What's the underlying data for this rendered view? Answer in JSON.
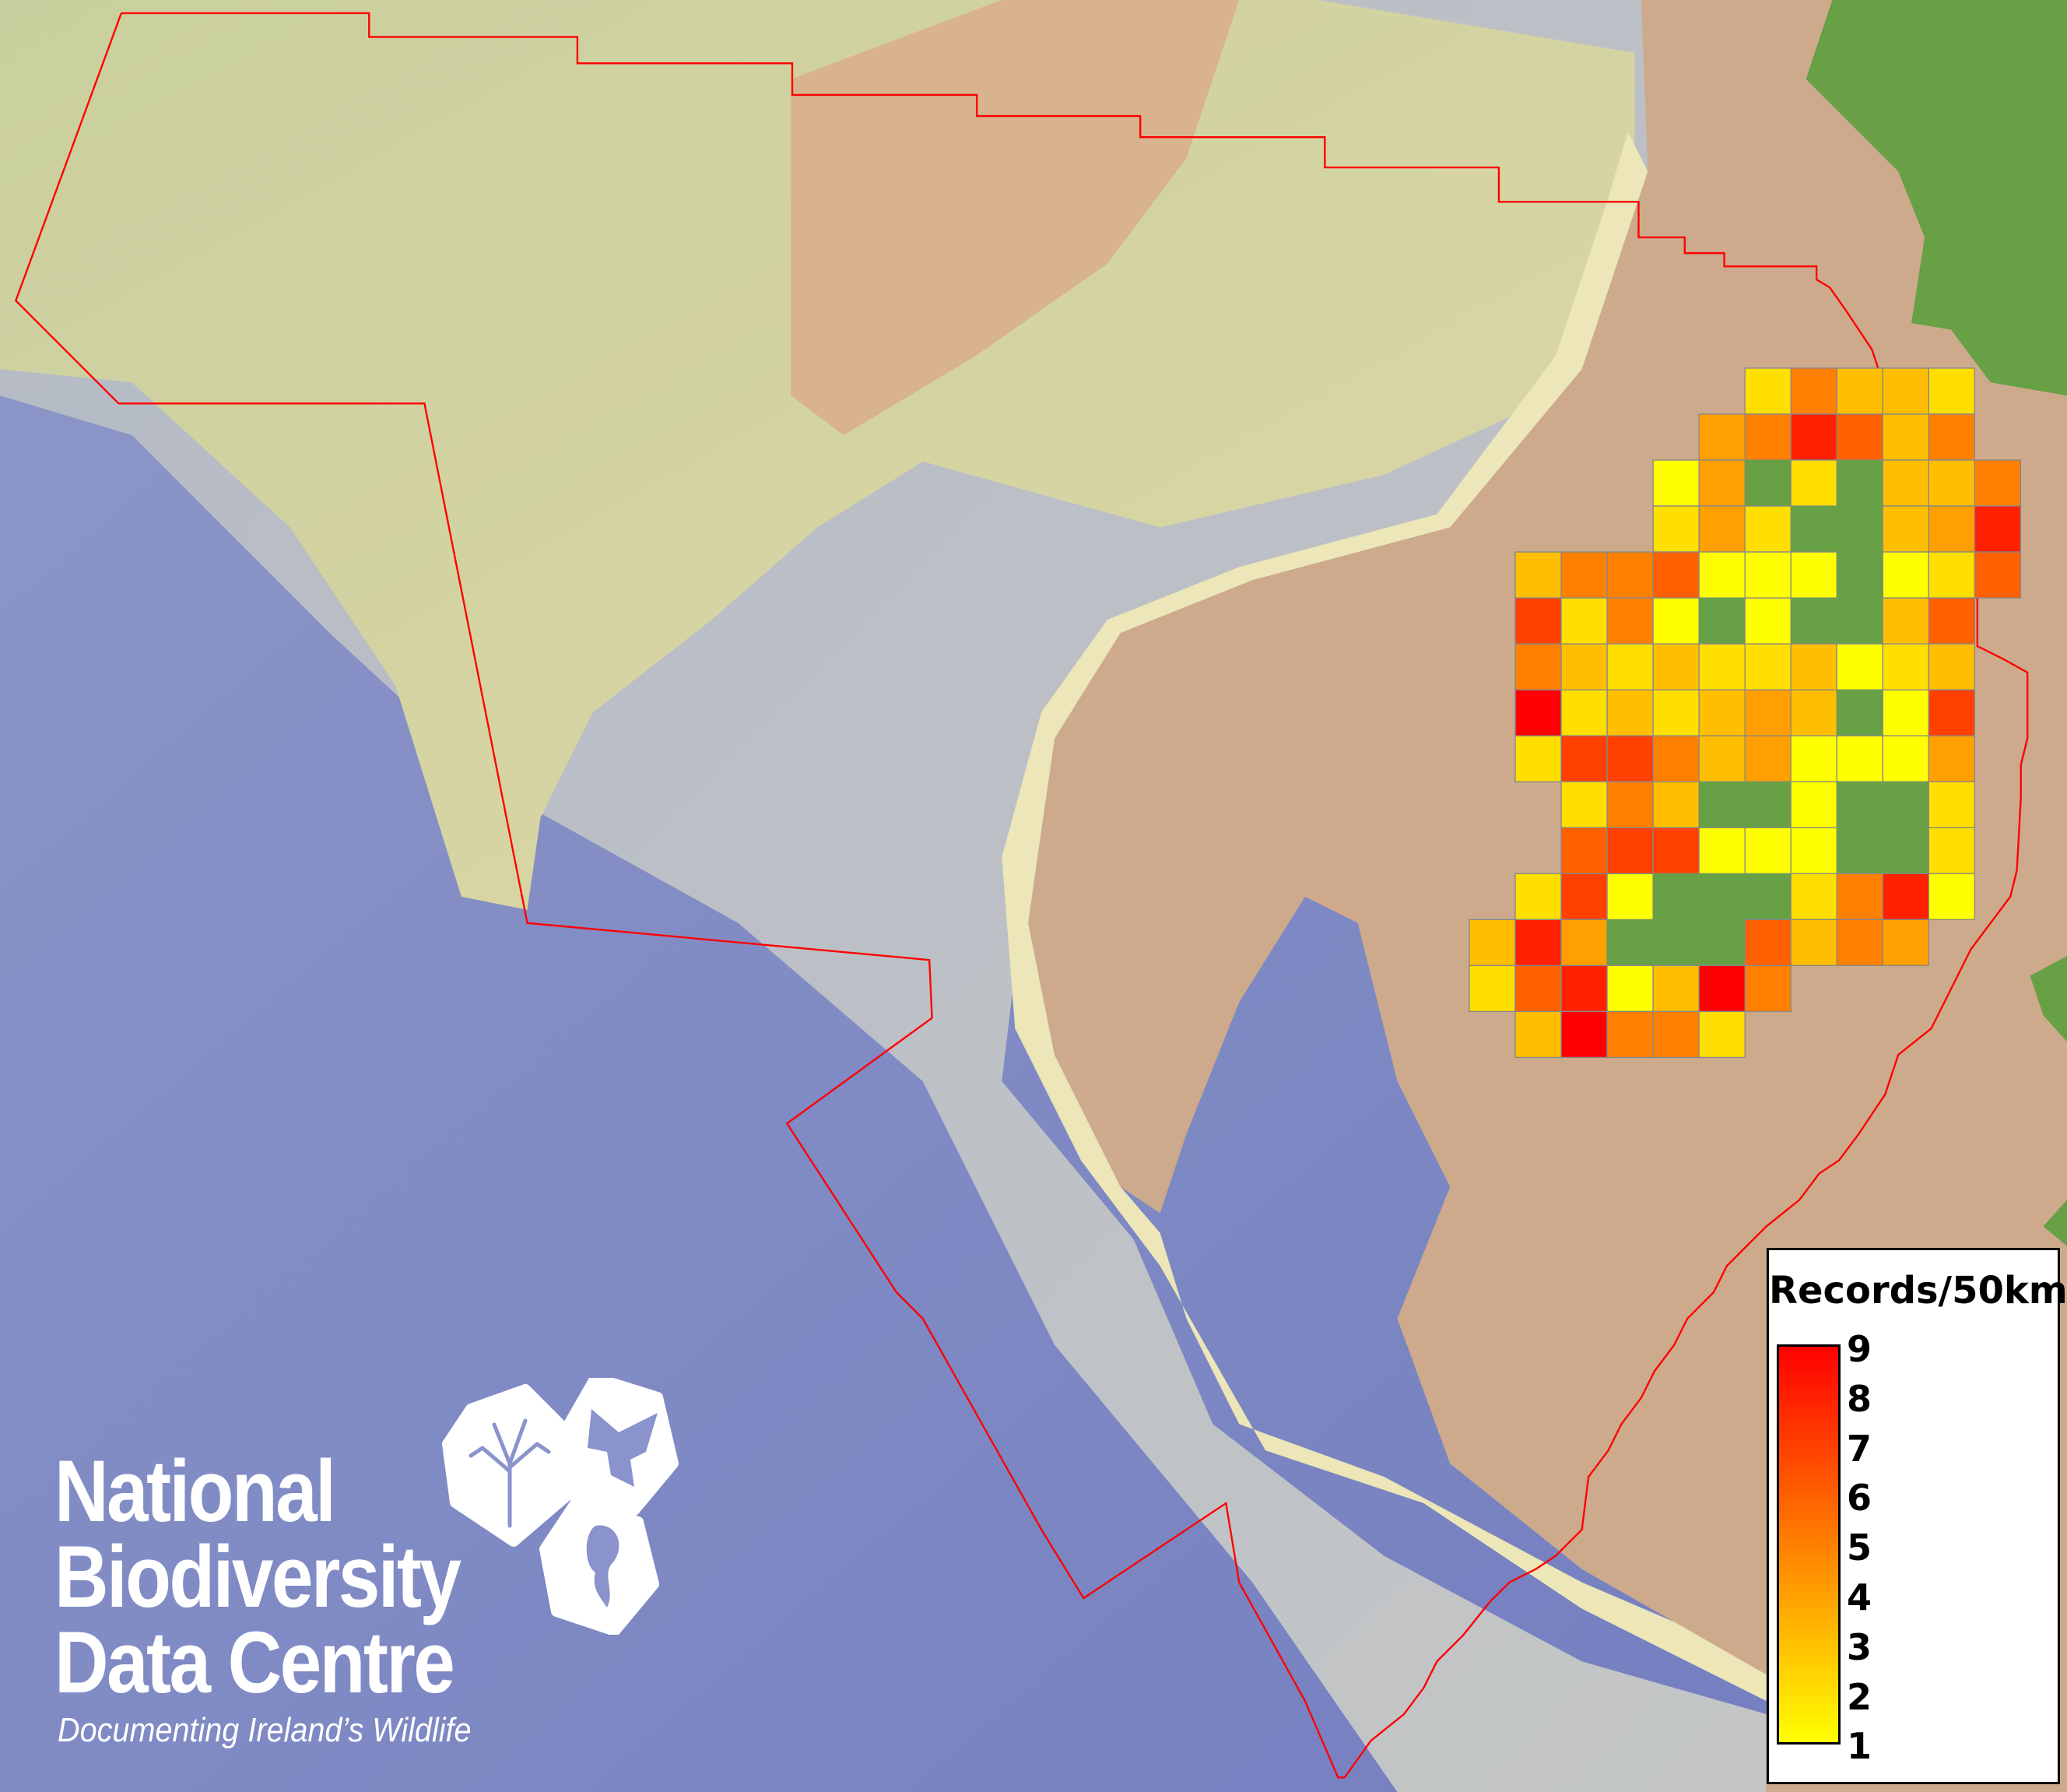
{
  "map": {
    "boundary_color": "#ff0000",
    "ocean_color": "#7f88c6",
    "land_color": "#cdaa8c",
    "vegetation_color": "#67a045",
    "grid": {
      "cell_size_label": "50km",
      "no_data": null,
      "land_without_records": 0,
      "rows": [
        [
          null,
          null,
          null,
          null,
          null,
          null,
          2,
          5,
          3,
          3,
          2,
          null
        ],
        [
          null,
          null,
          null,
          null,
          null,
          4,
          5,
          8,
          6,
          3,
          5,
          null
        ],
        [
          null,
          null,
          null,
          null,
          1,
          4,
          0,
          2,
          0,
          3,
          3,
          5
        ],
        [
          null,
          null,
          null,
          null,
          2,
          4,
          2,
          0,
          0,
          3,
          4,
          8
        ],
        [
          null,
          3,
          5,
          5,
          6,
          1,
          1,
          1,
          0,
          1,
          2,
          6
        ],
        [
          null,
          7,
          2,
          5,
          1,
          0,
          1,
          0,
          0,
          3,
          6,
          null
        ],
        [
          null,
          5,
          3,
          2,
          3,
          2,
          2,
          3,
          1,
          2,
          3,
          null
        ],
        [
          null,
          9,
          2,
          3,
          2,
          3,
          4,
          3,
          0,
          1,
          7,
          null
        ],
        [
          null,
          2,
          7,
          7,
          5,
          3,
          4,
          1,
          1,
          1,
          4,
          null
        ],
        [
          null,
          null,
          2,
          5,
          3,
          0,
          0,
          1,
          0,
          0,
          2,
          null
        ],
        [
          null,
          null,
          6,
          7,
          7,
          1,
          1,
          1,
          0,
          0,
          2,
          null
        ],
        [
          null,
          2,
          7,
          1,
          0,
          0,
          0,
          2,
          5,
          8,
          1,
          null
        ],
        [
          3,
          8,
          4,
          0,
          0,
          0,
          6,
          3,
          5,
          4,
          null,
          null
        ],
        [
          2,
          6,
          8,
          1,
          3,
          9,
          5,
          null,
          null,
          null,
          null,
          null
        ],
        [
          null,
          3,
          9,
          5,
          5,
          2,
          null,
          null,
          null,
          null,
          null,
          null
        ]
      ]
    }
  },
  "legend": {
    "title": "Records/50km",
    "min": 1,
    "max": 9,
    "color_low": "#ffff00",
    "color_high": "#ff0000",
    "labels": [
      "9",
      "8",
      "7",
      "6",
      "5",
      "4",
      "3",
      "2",
      "1"
    ]
  },
  "logo": {
    "line1": "National",
    "line2": "Biodiversity",
    "line3": "Data Centre",
    "tagline": "Documenting Ireland’s Wildlife",
    "icons": [
      "tree-icon",
      "butterfly-icon",
      "seahorse-icon"
    ]
  }
}
